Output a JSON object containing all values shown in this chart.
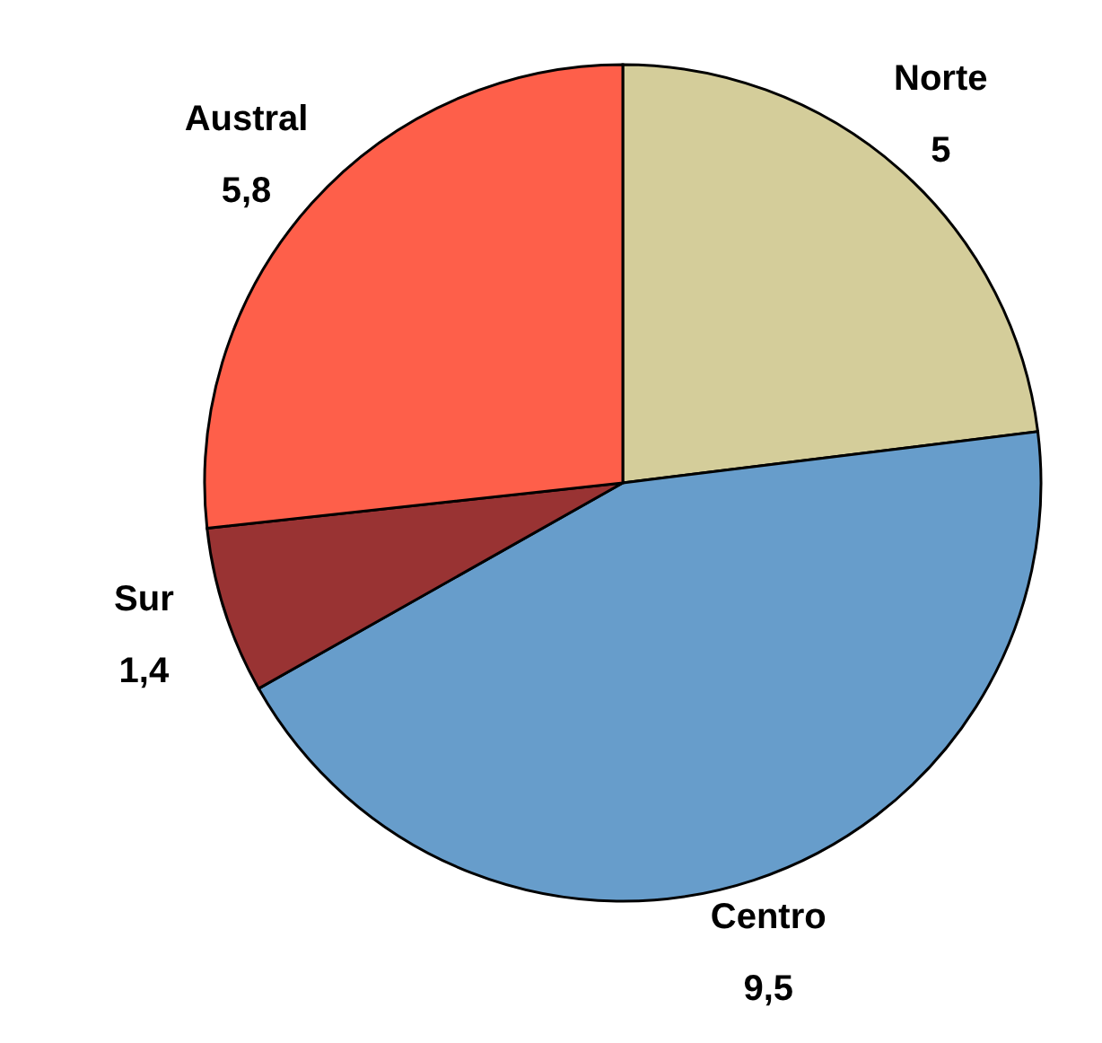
{
  "chart_data": {
    "type": "pie",
    "categories": [
      "Norte",
      "Centro",
      "Sur",
      "Austral"
    ],
    "values": [
      5,
      9.5,
      1.4,
      5.8
    ],
    "value_labels": [
      "5",
      "9,5",
      "1,4",
      "5,8"
    ],
    "colors": [
      "#d4cd9a",
      "#679dcb",
      "#993333",
      "#fe5f4a"
    ]
  }
}
